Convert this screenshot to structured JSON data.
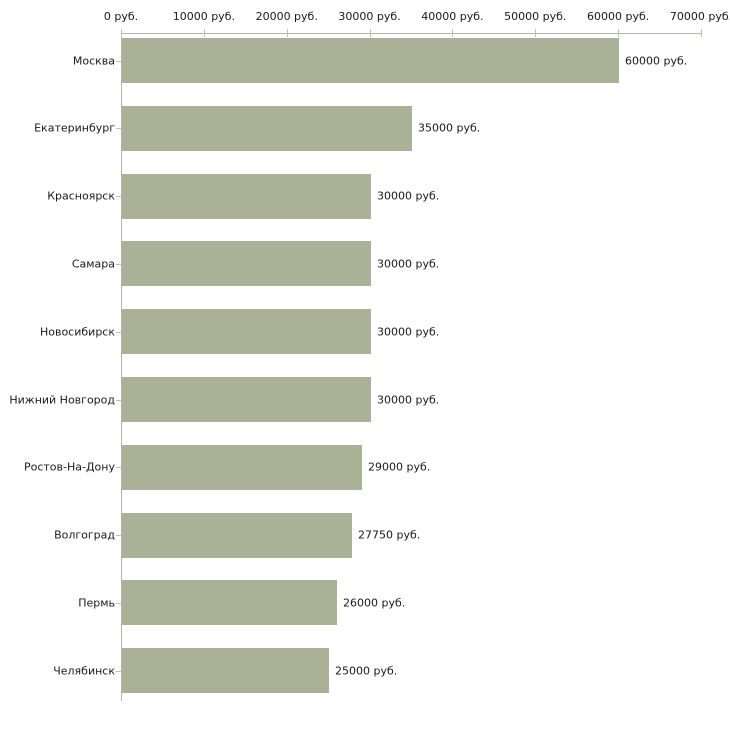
{
  "chart_data": {
    "type": "bar",
    "orientation": "horizontal",
    "title": "",
    "xlabel": "",
    "ylabel": "",
    "categories": [
      "Москва",
      "Екатеринбург",
      "Красноярск",
      "Самара",
      "Новосибирск",
      "Нижний Новгород",
      "Ростов-На-Дону",
      "Волгоград",
      "Пермь",
      "Челябинск"
    ],
    "values": [
      60000,
      35000,
      30000,
      30000,
      30000,
      30000,
      29000,
      27750,
      26000,
      25000
    ],
    "value_labels": [
      "60000 руб.",
      "35000 руб.",
      "30000 руб.",
      "30000 руб.",
      "30000 руб.",
      "30000 руб.",
      "29000 руб.",
      "27750 руб.",
      "26000 руб.",
      "25000 руб."
    ],
    "x_axis": {
      "position": "top",
      "min": 0,
      "max": 70000,
      "tick_interval": 10000,
      "tick_values": [
        0,
        10000,
        20000,
        30000,
        40000,
        50000,
        60000,
        70000
      ],
      "tick_labels": [
        "0 руб.",
        "10000 руб.",
        "20000 руб.",
        "30000 руб.",
        "40000 руб.",
        "50000 руб.",
        "60000 руб.",
        "70000 руб."
      ]
    },
    "grid": false,
    "legend": false,
    "colors": {
      "bar_fill": "#abb196",
      "axis_line": "#b3b3b3",
      "tick_mark": "#c9c098",
      "text": "#1a1a1a",
      "background": "#ffffff"
    }
  }
}
